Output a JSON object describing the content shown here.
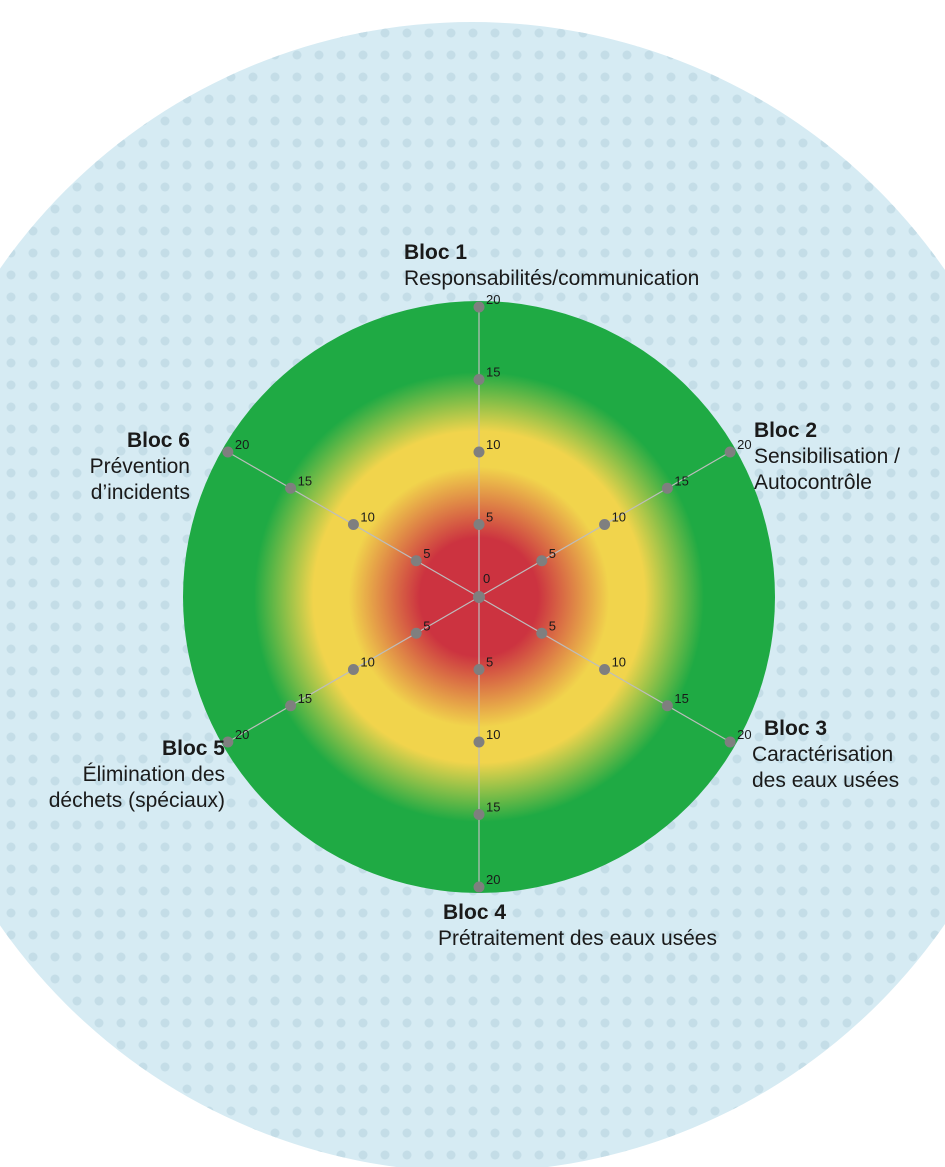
{
  "colors": {
    "background_circle": "#d6ebf3",
    "dot_pattern": "#c4dde7",
    "center_red": "#cc3340",
    "mid_yellow": "#f1d44c",
    "outer_green": "#1faa44",
    "axis_line": "#bdbdbd",
    "marker": "#7f7f7f"
  },
  "chart_data": {
    "type": "radar",
    "scale_max": 20,
    "center_label": "0",
    "ticks": [
      5,
      10,
      15,
      20
    ],
    "axes": [
      {
        "title": "Bloc 1",
        "description": "Responsabilités/communication"
      },
      {
        "title": "Bloc 2",
        "description": "Sensibilisation / Autocontrôle"
      },
      {
        "title": "Bloc 3",
        "description": "Caractérisation des eaux usées"
      },
      {
        "title": "Bloc 4",
        "description": "Prétraitement des eaux usées"
      },
      {
        "title": "Bloc 5",
        "description": "Élimination des déchets (spéciaux)"
      },
      {
        "title": "Bloc 6",
        "description": "Prévention d’incidents"
      }
    ]
  }
}
